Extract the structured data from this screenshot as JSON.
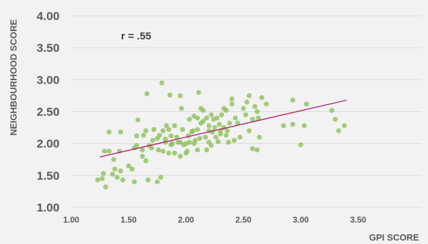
{
  "chart_data": {
    "type": "scatter",
    "xlabel": "GPI SCORE",
    "ylabel": "NEIGHBOURHOOD SCORE",
    "annotation": "r = .55",
    "xlim": [
      1.0,
      3.5
    ],
    "ylim": [
      1.0,
      4.0
    ],
    "x_ticks": [
      "1.00",
      "1.50",
      "2.00",
      "2.50",
      "3.00",
      "3.50"
    ],
    "y_ticks": [
      "1.00",
      "1.50",
      "2.00",
      "2.50",
      "3.00",
      "3.50",
      "4.00"
    ],
    "grid": "horizontal",
    "colors": {
      "points": "#8fc15a",
      "trend_line": "#b0206e",
      "grid": "#d9d9d9",
      "background": "#f2f2f2"
    },
    "trend_line": {
      "x": [
        1.25,
        3.4
      ],
      "y": [
        1.79,
        2.68
      ]
    },
    "points": [
      [
        1.23,
        1.43
      ],
      [
        1.27,
        1.45
      ],
      [
        1.28,
        1.53
      ],
      [
        1.3,
        1.32
      ],
      [
        1.29,
        1.88
      ],
      [
        1.33,
        1.88
      ],
      [
        1.33,
        2.18
      ],
      [
        1.36,
        1.52
      ],
      [
        1.38,
        1.6
      ],
      [
        1.37,
        1.75
      ],
      [
        1.4,
        1.47
      ],
      [
        1.43,
        1.57
      ],
      [
        1.42,
        1.88
      ],
      [
        1.43,
        2.18
      ],
      [
        1.45,
        1.43
      ],
      [
        1.5,
        1.65
      ],
      [
        1.53,
        1.6
      ],
      [
        1.55,
        1.4
      ],
      [
        1.55,
        1.93
      ],
      [
        1.57,
        2.12
      ],
      [
        1.57,
        1.97
      ],
      [
        1.58,
        2.37
      ],
      [
        1.62,
        1.8
      ],
      [
        1.62,
        1.9
      ],
      [
        1.63,
        2.13
      ],
      [
        1.65,
        1.73
      ],
      [
        1.65,
        2.2
      ],
      [
        1.67,
        1.43
      ],
      [
        1.66,
        2.78
      ],
      [
        1.68,
        1.97
      ],
      [
        1.7,
        1.93
      ],
      [
        1.71,
        2.05
      ],
      [
        1.72,
        2.22
      ],
      [
        1.75,
        1.4
      ],
      [
        1.75,
        2.08
      ],
      [
        1.76,
        1.9
      ],
      [
        1.77,
        2.13
      ],
      [
        1.78,
        1.47
      ],
      [
        1.79,
        2.95
      ],
      [
        1.8,
        2.2
      ],
      [
        1.8,
        1.88
      ],
      [
        1.82,
        2.02
      ],
      [
        1.83,
        2.28
      ],
      [
        1.82,
        2.07
      ],
      [
        1.85,
        1.85
      ],
      [
        1.85,
        2.22
      ],
      [
        1.86,
        2.76
      ],
      [
        1.87,
        1.98
      ],
      [
        1.88,
        2.0
      ],
      [
        1.87,
        2.12
      ],
      [
        1.9,
        1.85
      ],
      [
        1.9,
        2.28
      ],
      [
        1.92,
        2.1
      ],
      [
        1.93,
        2.02
      ],
      [
        1.95,
        1.8
      ],
      [
        1.95,
        2.02
      ],
      [
        1.95,
        2.75
      ],
      [
        1.96,
        2.55
      ],
      [
        1.97,
        2.22
      ],
      [
        1.98,
        1.98
      ],
      [
        2.0,
        1.85
      ],
      [
        2.0,
        2.0
      ],
      [
        2.01,
        1.88
      ],
      [
        2.02,
        2.12
      ],
      [
        2.03,
        2.38
      ],
      [
        2.03,
        2.02
      ],
      [
        2.05,
        2.18
      ],
      [
        2.06,
        2.2
      ],
      [
        2.07,
        2.0
      ],
      [
        2.07,
        2.43
      ],
      [
        2.08,
        2.05
      ],
      [
        2.1,
        2.22
      ],
      [
        2.1,
        1.9
      ],
      [
        2.1,
        2.4
      ],
      [
        2.11,
        2.8
      ],
      [
        2.12,
        2.08
      ],
      [
        2.13,
        2.55
      ],
      [
        2.13,
        2.32
      ],
      [
        2.15,
        2.35
      ],
      [
        2.15,
        2.52
      ],
      [
        2.17,
        2.1
      ],
      [
        2.18,
        1.9
      ],
      [
        2.18,
        2.4
      ],
      [
        2.2,
        2.02
      ],
      [
        2.2,
        2.2
      ],
      [
        2.2,
        2.28
      ],
      [
        2.22,
        1.97
      ],
      [
        2.22,
        2.45
      ],
      [
        2.23,
        2.18
      ],
      [
        2.24,
        2.38
      ],
      [
        2.25,
        2.25
      ],
      [
        2.26,
        2.1
      ],
      [
        2.27,
        2.4
      ],
      [
        2.28,
        2.03
      ],
      [
        2.29,
        2.3
      ],
      [
        2.3,
        2.15
      ],
      [
        2.3,
        2.2
      ],
      [
        2.31,
        2.45
      ],
      [
        2.33,
        2.55
      ],
      [
        2.33,
        2.25
      ],
      [
        2.35,
        2.52
      ],
      [
        2.35,
        2.13
      ],
      [
        2.36,
        2.2
      ],
      [
        2.37,
        2.02
      ],
      [
        2.38,
        2.32
      ],
      [
        2.4,
        2.62
      ],
      [
        2.4,
        2.7
      ],
      [
        2.42,
        2.05
      ],
      [
        2.43,
        2.4
      ],
      [
        2.45,
        2.32
      ],
      [
        2.47,
        2.1
      ],
      [
        2.5,
        2.55
      ],
      [
        2.52,
        2.45
      ],
      [
        2.53,
        2.65
      ],
      [
        2.55,
        2.75
      ],
      [
        2.55,
        2.2
      ],
      [
        2.58,
        1.92
      ],
      [
        2.58,
        2.38
      ],
      [
        2.6,
        2.58
      ],
      [
        2.62,
        1.9
      ],
      [
        2.62,
        2.5
      ],
      [
        2.63,
        2.4
      ],
      [
        2.64,
        2.1
      ],
      [
        2.66,
        2.72
      ],
      [
        2.7,
        2.62
      ],
      [
        2.85,
        2.28
      ],
      [
        2.93,
        2.3
      ],
      [
        2.93,
        2.68
      ],
      [
        3.0,
        1.98
      ],
      [
        3.03,
        2.28
      ],
      [
        3.05,
        2.62
      ],
      [
        3.27,
        2.52
      ],
      [
        3.3,
        2.38
      ],
      [
        3.33,
        2.2
      ],
      [
        3.38,
        2.28
      ]
    ]
  }
}
